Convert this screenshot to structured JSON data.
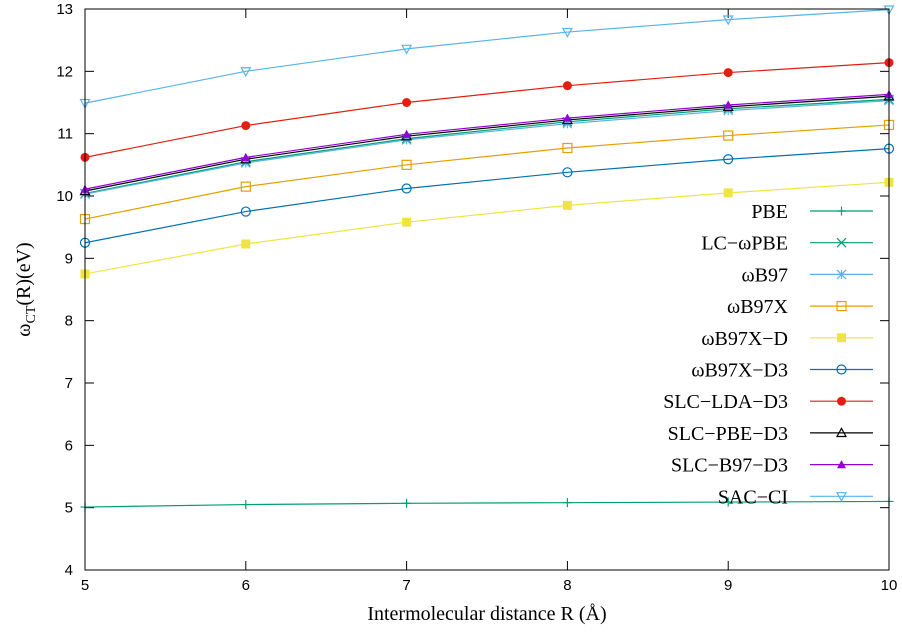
{
  "chart_data": {
    "type": "line",
    "title": "",
    "xlabel": "Intermolecular distance R (Å)",
    "ylabel": {
      "main": "ω",
      "sub": "CT",
      "rest": "(R)(eV)"
    },
    "xlim": [
      5,
      10
    ],
    "ylim": [
      4,
      13
    ],
    "xticks": [
      5,
      6,
      7,
      8,
      9,
      10
    ],
    "yticks": [
      4,
      5,
      6,
      7,
      8,
      9,
      10,
      11,
      12,
      13
    ],
    "grid": false,
    "legend_position": "right",
    "x": [
      5,
      6,
      7,
      8,
      9,
      10
    ],
    "series": [
      {
        "name": "PBE",
        "color": "#009e73",
        "marker": "plus",
        "values": [
          5.01,
          5.05,
          5.07,
          5.08,
          5.09,
          5.1
        ]
      },
      {
        "name": "LC−ωPBE",
        "color": "#009e73",
        "marker": "cross",
        "values": [
          10.04,
          10.55,
          10.92,
          11.19,
          11.4,
          11.55
        ]
      },
      {
        "name": "ωB97",
        "color": "#56b4e9",
        "marker": "star",
        "values": [
          10.03,
          10.53,
          10.9,
          11.16,
          11.37,
          11.53
        ]
      },
      {
        "name": "ωB97X",
        "color": "#e69f00",
        "marker": "open-square",
        "values": [
          9.63,
          10.15,
          10.5,
          10.77,
          10.97,
          11.14
        ]
      },
      {
        "name": "ωB97X−D",
        "color": "#f0e442",
        "marker": "filled-square",
        "values": [
          8.75,
          9.23,
          9.58,
          9.85,
          10.05,
          10.22
        ]
      },
      {
        "name": "ωB97X−D3",
        "color": "#0072b2",
        "marker": "open-circle",
        "values": [
          9.25,
          9.75,
          10.12,
          10.38,
          10.59,
          10.76
        ]
      },
      {
        "name": "SLC−LDA−D3",
        "color": "#e51e10",
        "marker": "filled-circle",
        "values": [
          10.62,
          11.13,
          11.5,
          11.77,
          11.98,
          12.14
        ]
      },
      {
        "name": "SLC−PBE−D3",
        "color": "#000000",
        "marker": "open-triangle",
        "values": [
          10.08,
          10.59,
          10.96,
          11.22,
          11.43,
          11.6
        ]
      },
      {
        "name": "SLC−B97−D3",
        "color": "#9400d3",
        "marker": "filled-triangle",
        "values": [
          10.11,
          10.62,
          10.99,
          11.25,
          11.46,
          11.63
        ]
      },
      {
        "name": "SAC−CI",
        "color": "#56b4e9",
        "marker": "open-triangle-down",
        "values": [
          11.49,
          12.0,
          12.36,
          12.63,
          12.83,
          12.99
        ]
      }
    ]
  }
}
